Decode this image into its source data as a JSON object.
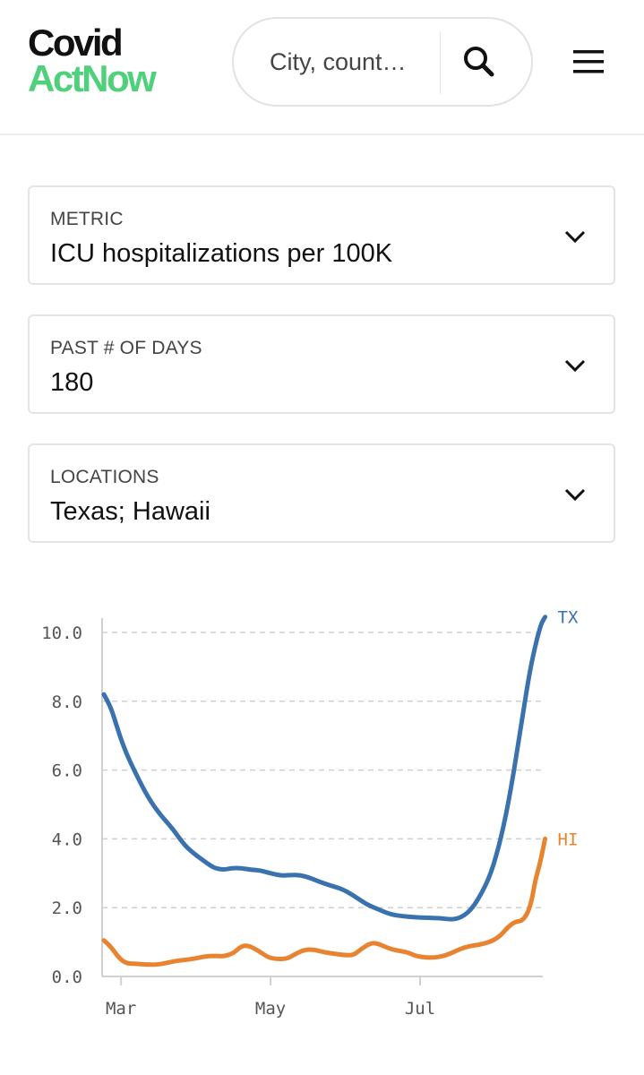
{
  "header": {
    "logo_line1": "Covid",
    "logo_line2": "ActNow",
    "logo_color_primary": "#111111",
    "logo_color_accent": "#4fd07a",
    "search_placeholder": "City, count…",
    "search_icon": "search-icon",
    "menu_icon": "hamburger-menu-icon"
  },
  "selectors": [
    {
      "label": "METRIC",
      "value": "ICU hospitalizations per 100K"
    },
    {
      "label": "PAST # OF DAYS",
      "value": "180"
    },
    {
      "label": "LOCATIONS",
      "value": "Texas; Hawaii"
    }
  ],
  "chart_data": {
    "type": "line",
    "title": "",
    "xlabel": "",
    "ylabel": "",
    "x_axis": {
      "type": "date",
      "ticks": [
        {
          "date": "2021-03-01",
          "label": "Mar"
        },
        {
          "date": "2021-05-01",
          "label": "May"
        },
        {
          "date": "2021-07-01",
          "label": "Jul"
        }
      ],
      "range": [
        "2021-02-22",
        "2021-08-24"
      ]
    },
    "y_axis": {
      "ticks": [
        "0.0",
        "2.0",
        "4.0",
        "6.0",
        "8.0",
        "10.0"
      ],
      "range": [
        0,
        10.5
      ]
    },
    "grid": "horizontal dashed",
    "legend": "inline labels at line ends",
    "series": [
      {
        "name": "TX",
        "color": "#3a72ae",
        "points": [
          [
            "2021-02-22",
            8.2
          ],
          [
            "2021-02-25",
            7.8
          ],
          [
            "2021-02-28",
            7.1
          ],
          [
            "2021-03-03",
            6.5
          ],
          [
            "2021-03-07",
            5.9
          ],
          [
            "2021-03-12",
            5.2
          ],
          [
            "2021-03-17",
            4.7
          ],
          [
            "2021-03-22",
            4.3
          ],
          [
            "2021-03-27",
            3.8
          ],
          [
            "2021-04-01",
            3.5
          ],
          [
            "2021-04-05",
            3.3
          ],
          [
            "2021-04-08",
            3.15
          ],
          [
            "2021-04-12",
            3.1
          ],
          [
            "2021-04-15",
            3.15
          ],
          [
            "2021-04-19",
            3.15
          ],
          [
            "2021-04-23",
            3.1
          ],
          [
            "2021-04-27",
            3.08
          ],
          [
            "2021-05-01",
            3.0
          ],
          [
            "2021-05-05",
            2.93
          ],
          [
            "2021-05-09",
            2.95
          ],
          [
            "2021-05-13",
            2.95
          ],
          [
            "2021-05-17",
            2.87
          ],
          [
            "2021-05-21",
            2.75
          ],
          [
            "2021-05-25",
            2.65
          ],
          [
            "2021-05-30",
            2.55
          ],
          [
            "2021-06-04",
            2.35
          ],
          [
            "2021-06-09",
            2.1
          ],
          [
            "2021-06-14",
            1.95
          ],
          [
            "2021-06-19",
            1.8
          ],
          [
            "2021-06-24",
            1.75
          ],
          [
            "2021-06-29",
            1.72
          ],
          [
            "2021-07-04",
            1.7
          ],
          [
            "2021-07-09",
            1.7
          ],
          [
            "2021-07-14",
            1.65
          ],
          [
            "2021-07-18",
            1.72
          ],
          [
            "2021-07-22",
            1.95
          ],
          [
            "2021-07-26",
            2.4
          ],
          [
            "2021-07-30",
            3.0
          ],
          [
            "2021-08-03",
            4.0
          ],
          [
            "2021-08-07",
            5.4
          ],
          [
            "2021-08-11",
            7.2
          ],
          [
            "2021-08-15",
            9.0
          ],
          [
            "2021-08-19",
            10.2
          ],
          [
            "2021-08-21",
            10.45
          ]
        ]
      },
      {
        "name": "HI",
        "color": "#e8832f",
        "points": [
          [
            "2021-02-22",
            1.05
          ],
          [
            "2021-02-25",
            0.85
          ],
          [
            "2021-02-28",
            0.55
          ],
          [
            "2021-03-03",
            0.38
          ],
          [
            "2021-03-07",
            0.37
          ],
          [
            "2021-03-11",
            0.35
          ],
          [
            "2021-03-15",
            0.34
          ],
          [
            "2021-03-19",
            0.38
          ],
          [
            "2021-03-23",
            0.45
          ],
          [
            "2021-03-27",
            0.48
          ],
          [
            "2021-03-31",
            0.52
          ],
          [
            "2021-04-04",
            0.58
          ],
          [
            "2021-04-08",
            0.6
          ],
          [
            "2021-04-12",
            0.58
          ],
          [
            "2021-04-16",
            0.68
          ],
          [
            "2021-04-19",
            0.88
          ],
          [
            "2021-04-22",
            0.9
          ],
          [
            "2021-04-26",
            0.75
          ],
          [
            "2021-04-30",
            0.55
          ],
          [
            "2021-05-04",
            0.5
          ],
          [
            "2021-05-08",
            0.52
          ],
          [
            "2021-05-11",
            0.65
          ],
          [
            "2021-05-15",
            0.78
          ],
          [
            "2021-05-19",
            0.78
          ],
          [
            "2021-05-23",
            0.7
          ],
          [
            "2021-05-27",
            0.66
          ],
          [
            "2021-05-31",
            0.62
          ],
          [
            "2021-06-04",
            0.62
          ],
          [
            "2021-06-07",
            0.8
          ],
          [
            "2021-06-11",
            0.98
          ],
          [
            "2021-06-14",
            0.95
          ],
          [
            "2021-06-18",
            0.82
          ],
          [
            "2021-06-22",
            0.75
          ],
          [
            "2021-06-26",
            0.7
          ],
          [
            "2021-06-29",
            0.6
          ],
          [
            "2021-07-03",
            0.55
          ],
          [
            "2021-07-07",
            0.55
          ],
          [
            "2021-07-11",
            0.6
          ],
          [
            "2021-07-15",
            0.72
          ],
          [
            "2021-07-19",
            0.85
          ],
          [
            "2021-07-23",
            0.9
          ],
          [
            "2021-07-27",
            0.95
          ],
          [
            "2021-07-31",
            1.05
          ],
          [
            "2021-08-03",
            1.2
          ],
          [
            "2021-08-06",
            1.45
          ],
          [
            "2021-08-09",
            1.6
          ],
          [
            "2021-08-12",
            1.62
          ],
          [
            "2021-08-15",
            2.0
          ],
          [
            "2021-08-17",
            2.8
          ],
          [
            "2021-08-19",
            3.3
          ],
          [
            "2021-08-21",
            4.0
          ]
        ]
      }
    ]
  }
}
